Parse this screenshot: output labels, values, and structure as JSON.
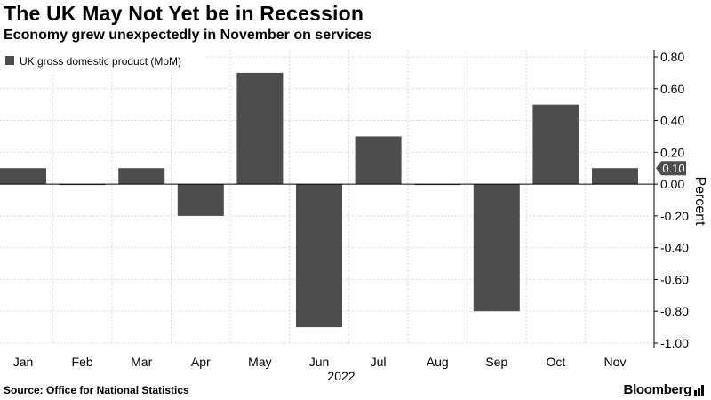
{
  "title": "The UK May Not Yet be in Recession",
  "subtitle": "Economy grew unexpectedly in November on services",
  "source": "Source: Office for National Statistics",
  "brand": "Bloomberg",
  "colors": {
    "bar": "#4d4d4d",
    "grid": "#d9d9d9",
    "axis": "#000000",
    "badge": "#4d4d4d"
  },
  "chart_data": {
    "type": "bar",
    "title": "The UK May Not Yet be in Recession",
    "xlabel": "2022",
    "ylabel": "Percent",
    "categories": [
      "Jan",
      "Feb",
      "Mar",
      "Apr",
      "May",
      "Jun",
      "Jul",
      "Aug",
      "Sep",
      "Oct",
      "Nov"
    ],
    "series": [
      {
        "name": "UK gross domestic product (MoM)",
        "values": [
          0.1,
          0.0,
          0.1,
          -0.2,
          0.7,
          -0.9,
          0.3,
          0.0,
          -0.8,
          0.5,
          0.1
        ]
      }
    ],
    "ylim": [
      -1.0,
      0.8
    ],
    "yticks": [
      0.8,
      0.6,
      0.4,
      0.2,
      0.0,
      -0.2,
      -0.4,
      -0.6,
      -0.8,
      -1.0
    ],
    "ytick_labels": [
      "0.80",
      "0.60",
      "0.40",
      "0.20",
      "0.00",
      "-0.20",
      "-0.40",
      "-0.60",
      "-0.80",
      "-1.00"
    ],
    "last_value_label": "0.10",
    "legend": "top-left",
    "grid": true
  }
}
